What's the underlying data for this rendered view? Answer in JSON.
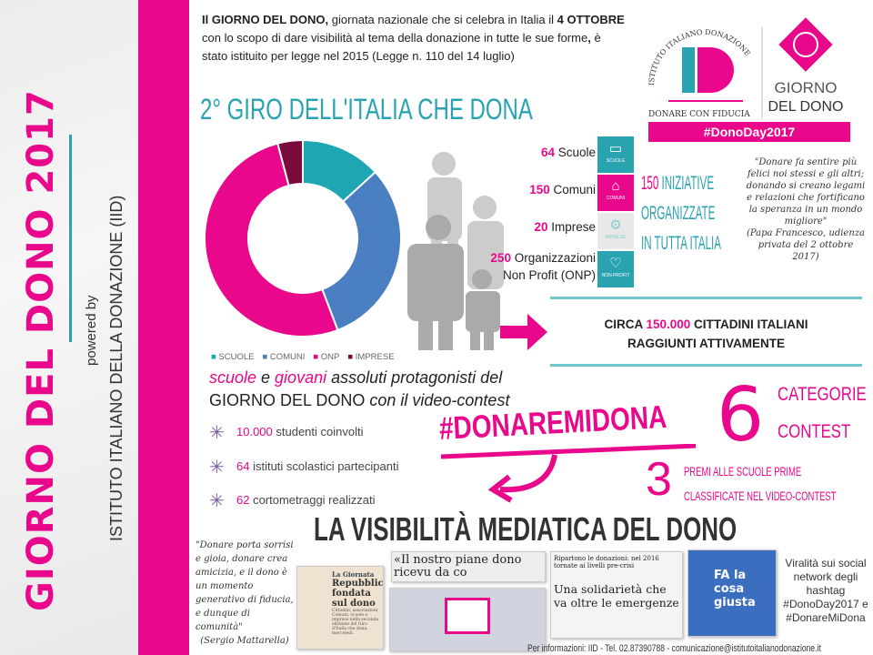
{
  "sidebar": {
    "title": "GIORNO DEL DONO 2017",
    "powered_by": "powered by",
    "institute": "ISTITUTO ITALIANO DELLA DONAZIONE (IID)"
  },
  "intro": {
    "p1_bold": "Il GIORNO DEL DONO,",
    "p1": " giornata nazionale che si celebra in Italia il ",
    "p2_bold": "4 OTTOBRE",
    "p2": " con lo scopo di dare visibilità al tema della donazione in tutte le sue forme",
    "p3_bold": ",",
    "p3": " è stato istituito per legge nel 2015 (Legge n. 110 del 14 luglio)"
  },
  "logo": {
    "arc": "ISTITUTO ITALIANO DONAZIONE",
    "mark": "ID",
    "tagline": "DONARE CON FIDUCIA",
    "giorno1": "GIORNO",
    "giorno2": "DEL DONO",
    "hashtag": "#DonoDay2017"
  },
  "giro_title": "2° GIRO DELL'ITALIA CHE DONA",
  "chart_data": {
    "type": "pie",
    "donut": true,
    "categories": [
      "SCUOLE",
      "COMUNI",
      "ONP",
      "IMPRESE"
    ],
    "values": [
      64,
      150,
      250,
      20
    ],
    "colors": [
      "#1fa6b3",
      "#4a7fc1",
      "#e9078b",
      "#7b0a3c"
    ],
    "legend": "bottom"
  },
  "stats": [
    {
      "n": "64",
      "label": " Scuole"
    },
    {
      "n": "150",
      "label": " Comuni"
    },
    {
      "n": "20",
      "label": " Imprese"
    },
    {
      "n": "250",
      "label": " Organizzazioni",
      "label2": "Non Profit (ONP)"
    }
  ],
  "icons": [
    {
      "name": "book",
      "caption": "SCUOLE",
      "color": "#2aa3b0"
    },
    {
      "name": "building",
      "caption": "COMUNI",
      "color": "#e9078b"
    },
    {
      "name": "gears",
      "caption": "IMPRESE",
      "color": "#e8e8e8"
    },
    {
      "name": "heart",
      "caption": "NON PROFIT",
      "color": "#2aa3b0"
    }
  ],
  "iniziative": {
    "n": "150",
    "l1": " INIZIATIVE",
    "l2": "ORGANIZZATE",
    "l3": "IN TUTTA ITALIA"
  },
  "quote_pope": {
    "text": "\"Donare fa sentire più felici noi stessi e gli altri; donando si creano legami e relazioni che fortificano la speranza in un mondo migliore\"",
    "author": "(Papa Francesco, udienza privata del 2 ottobre 2017)"
  },
  "circa": {
    "a": "CIRCA ",
    "n": "150.000",
    "b": " CITTADINI ITALIANI",
    "c": "RAGGIUNTI ATTIVAMENTE"
  },
  "protag": {
    "w1": "scuole",
    "w2": " e ",
    "w3": "giovani",
    "w4": " assoluti protagonisti del",
    "l2a": "GIORNO DEL DONO",
    "l2b": " con il video-contest"
  },
  "bullets": [
    {
      "n": "10.000",
      "t": " studenti coinvolti"
    },
    {
      "n": "64",
      "t": " istituti scolastici partecipanti"
    },
    {
      "n": "62",
      "t": " cortometraggi realizzati"
    }
  ],
  "contest": {
    "hashtag": "#DONAREMIDONA",
    "six": "6",
    "cat1": "CATEGORIE",
    "cat2": "CONTEST",
    "three": "3",
    "pr1": "PREMI ALLE SCUOLE PRIME",
    "pr2": "CLASSIFICATE NEL VIDEO-CONTEST"
  },
  "visibility_title": "LA VISIBILITÀ MEDIATICA DEL DONO",
  "quote_mattarella": {
    "text": "\"Donare porta sorrisi e gioia, donare crea amicizia, e il dono è un momento generativo di fiducia, e dunque di comunità\"",
    "author": "(Sergio Mattarella)"
  },
  "press": {
    "p1_kicker": "La Giornata",
    "p1_head": "Repubblica fondata sul dono",
    "p1_body": "Cittadini, associazioni, Comuni, scuole e imprese nella seconda edizione del Giro d'Italia che dona, mercoledì.",
    "p2": "«Il nostro piane dono ricevu da co",
    "p3_top": "Ripartono le donazioni: nel 2016 tornate ai livelli pre-crisi",
    "p3_head": "Una solidarietà che va oltre le emergenze",
    "p4": "FA la cosa giusta"
  },
  "viral": "Viralità sui social network degli hashtag #DonoDay2017 e #DonareMiDona",
  "footer": "Per informazioni: IID - Tel. 02.87390788 - comunicazione@istitutoitalianodonazione.it"
}
